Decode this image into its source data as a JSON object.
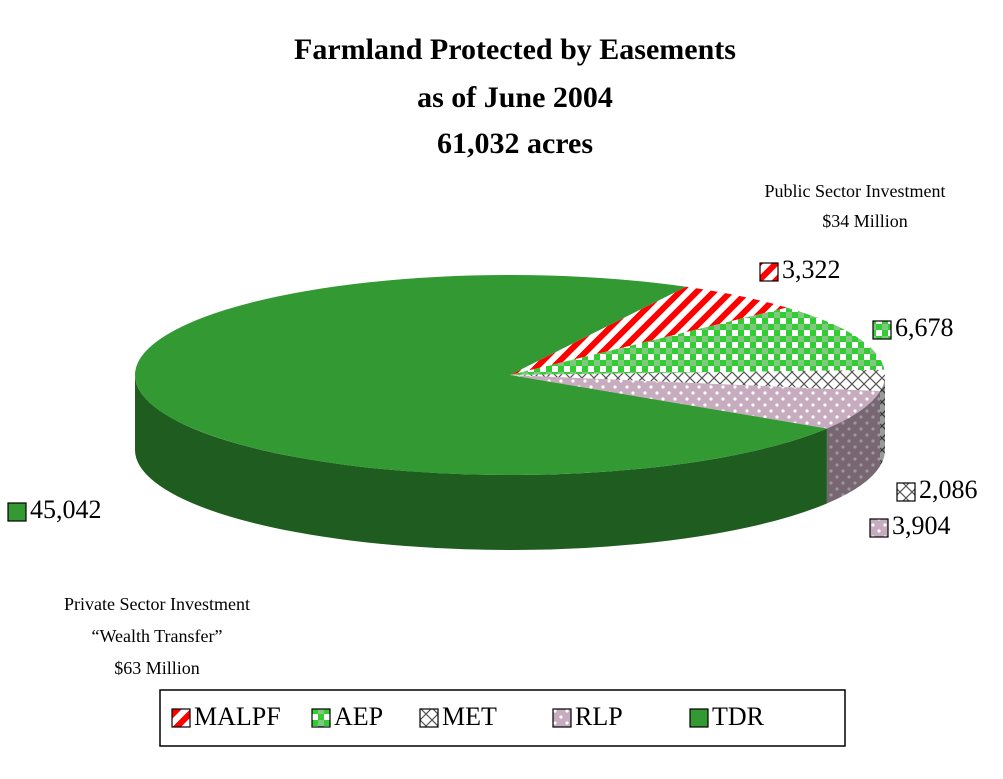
{
  "chart_data": {
    "type": "pie",
    "title": [
      "Farmland Protected by Easements",
      "as of June 2004",
      "61,032 acres"
    ],
    "categories": [
      "MALPF",
      "AEP",
      "MET",
      "RLP",
      "TDR"
    ],
    "values": [
      3322,
      6678,
      2086,
      3904,
      45042
    ],
    "value_labels": [
      "3,322",
      "6,678",
      "2,086",
      "3,904",
      "45,042"
    ],
    "colors": [
      "#ff0000",
      "#33cc33",
      "#555555",
      "#996688",
      "#339933"
    ],
    "annotations": {
      "public": [
        "Public Sector Investment",
        "$34 Million"
      ],
      "private": [
        "Private Sector Investment",
        "“Wealth Transfer”",
        "$63 Million"
      ]
    },
    "legend": "bottom"
  }
}
